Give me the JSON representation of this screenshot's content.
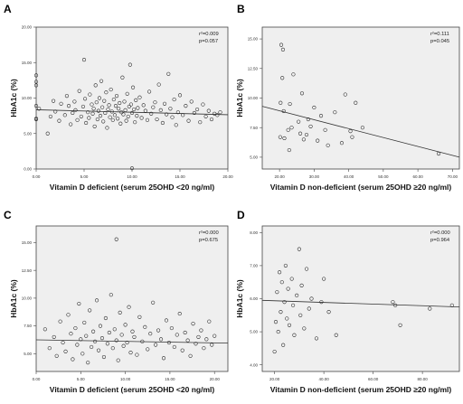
{
  "panels_title": "",
  "chart_data": [
    {
      "panel_label": "A",
      "type": "scatter",
      "xlabel": "Vitamin D deficient (serum 25OHD <20 ng/ml)",
      "ylabel": "HbA1c (%)",
      "xlim": [
        0,
        20
      ],
      "ylim": [
        0,
        20
      ],
      "xticks": [
        0,
        5,
        10,
        15,
        20
      ],
      "xtick_labels": [
        "0.00",
        "5.00",
        "10.00",
        "15.00",
        "20.00"
      ],
      "yticks": [
        0,
        5,
        10,
        15,
        20
      ],
      "ytick_labels": [
        "0.00",
        "5.00",
        "10.00",
        "15.00",
        "20.00"
      ],
      "annotation_lines": [
        "r²=0.009",
        "p=0.057"
      ],
      "fit_line": {
        "x": [
          0,
          20
        ],
        "y": [
          8.35,
          7.65
        ]
      },
      "points": [
        [
          0.0,
          13.2
        ],
        [
          0.0,
          12.3
        ],
        [
          0.0,
          11.8
        ],
        [
          0.0,
          7.1
        ],
        [
          0.0,
          7.0
        ],
        [
          0.0,
          8.9
        ],
        [
          0.3,
          8.5
        ],
        [
          1.2,
          5.0
        ],
        [
          1.5,
          7.4
        ],
        [
          1.8,
          9.6
        ],
        [
          2.0,
          8.1
        ],
        [
          2.4,
          6.8
        ],
        [
          2.6,
          9.2
        ],
        [
          3.0,
          7.6
        ],
        [
          3.2,
          10.3
        ],
        [
          3.4,
          8.9
        ],
        [
          3.6,
          6.3
        ],
        [
          3.8,
          7.9
        ],
        [
          4.0,
          9.5
        ],
        [
          4.1,
          8.3
        ],
        [
          4.3,
          6.9
        ],
        [
          4.5,
          11.0
        ],
        [
          4.7,
          7.4
        ],
        [
          4.9,
          8.8
        ],
        [
          5.0,
          15.4
        ],
        [
          5.1,
          9.9
        ],
        [
          5.2,
          6.5
        ],
        [
          5.4,
          8.0
        ],
        [
          5.5,
          7.2
        ],
        [
          5.6,
          10.5
        ],
        [
          5.8,
          9.1
        ],
        [
          5.9,
          7.8
        ],
        [
          6.0,
          8.5
        ],
        [
          6.1,
          6.0
        ],
        [
          6.2,
          11.8
        ],
        [
          6.3,
          9.4
        ],
        [
          6.4,
          7.0
        ],
        [
          6.5,
          8.2
        ],
        [
          6.6,
          10.0
        ],
        [
          6.7,
          7.5
        ],
        [
          6.8,
          12.4
        ],
        [
          6.9,
          8.7
        ],
        [
          7.0,
          6.7
        ],
        [
          7.1,
          9.6
        ],
        [
          7.2,
          7.9
        ],
        [
          7.3,
          10.8
        ],
        [
          7.4,
          5.8
        ],
        [
          7.5,
          8.4
        ],
        [
          7.6,
          9.0
        ],
        [
          7.7,
          7.3
        ],
        [
          7.8,
          11.2
        ],
        [
          7.9,
          8.1
        ],
        [
          8.0,
          6.9
        ],
        [
          8.1,
          9.8
        ],
        [
          8.2,
          7.6
        ],
        [
          8.3,
          8.9
        ],
        [
          8.4,
          10.3
        ],
        [
          8.5,
          7.1
        ],
        [
          8.6,
          8.5
        ],
        [
          8.7,
          9.3
        ],
        [
          8.8,
          6.4
        ],
        [
          8.9,
          8.0
        ],
        [
          9.0,
          12.9
        ],
        [
          9.1,
          7.7
        ],
        [
          9.2,
          9.5
        ],
        [
          9.3,
          8.3
        ],
        [
          9.4,
          6.8
        ],
        [
          9.5,
          10.6
        ],
        [
          9.6,
          7.4
        ],
        [
          9.7,
          8.8
        ],
        [
          9.8,
          14.7
        ],
        [
          9.9,
          9.1
        ],
        [
          10.0,
          0.1
        ],
        [
          10.0,
          7.9
        ],
        [
          10.1,
          11.5
        ],
        [
          10.2,
          8.4
        ],
        [
          10.3,
          6.6
        ],
        [
          10.4,
          9.7
        ],
        [
          10.5,
          7.5
        ],
        [
          10.6,
          8.6
        ],
        [
          10.8,
          10.1
        ],
        [
          11.0,
          7.2
        ],
        [
          11.2,
          9.0
        ],
        [
          11.4,
          8.2
        ],
        [
          11.6,
          6.9
        ],
        [
          11.8,
          10.9
        ],
        [
          12.0,
          7.8
        ],
        [
          12.2,
          8.7
        ],
        [
          12.4,
          9.4
        ],
        [
          12.6,
          7.0
        ],
        [
          12.8,
          11.9
        ],
        [
          13.0,
          8.3
        ],
        [
          13.2,
          6.5
        ],
        [
          13.4,
          9.2
        ],
        [
          13.6,
          7.7
        ],
        [
          13.8,
          13.4
        ],
        [
          14.0,
          8.5
        ],
        [
          14.2,
          7.3
        ],
        [
          14.4,
          9.8
        ],
        [
          14.6,
          6.2
        ],
        [
          14.8,
          8.0
        ],
        [
          15.0,
          10.4
        ],
        [
          15.3,
          7.6
        ],
        [
          15.6,
          8.9
        ],
        [
          15.9,
          6.8
        ],
        [
          16.2,
          9.5
        ],
        [
          16.5,
          7.9
        ],
        [
          16.8,
          8.4
        ],
        [
          17.1,
          6.6
        ],
        [
          17.4,
          9.1
        ],
        [
          17.7,
          7.4
        ],
        [
          18.0,
          8.2
        ],
        [
          18.3,
          7.0
        ],
        [
          18.6,
          7.8
        ],
        [
          18.9,
          7.6
        ],
        [
          19.2,
          8.0
        ]
      ]
    },
    {
      "panel_label": "B",
      "type": "scatter",
      "xlabel": "Vitamin D non-deficient (serum 25OHD ≥20 ng/ml)",
      "ylabel": "HbA1c (%)",
      "xlim": [
        15,
        72
      ],
      "ylim": [
        4,
        16
      ],
      "xticks": [
        20,
        30,
        40,
        50,
        60,
        70
      ],
      "xtick_labels": [
        "20.00",
        "30.00",
        "40.00",
        "50.00",
        "60.00",
        "70.00"
      ],
      "yticks": [
        5,
        7.5,
        10,
        12.5,
        15
      ],
      "ytick_labels": [
        "5.00",
        "7.50",
        "10.00",
        "12.50",
        "15.00"
      ],
      "annotation_lines": [
        "r²=0.111",
        "p=0.045"
      ],
      "fit_line": {
        "x": [
          15,
          72
        ],
        "y": [
          9.3,
          5.0
        ]
      },
      "points": [
        [
          20.5,
          14.5
        ],
        [
          21.0,
          14.1
        ],
        [
          20.8,
          11.7
        ],
        [
          20.3,
          9.6
        ],
        [
          21.2,
          8.9
        ],
        [
          20.2,
          6.7
        ],
        [
          21.4,
          6.6
        ],
        [
          22.5,
          7.3
        ],
        [
          23.0,
          9.5
        ],
        [
          23.5,
          7.5
        ],
        [
          22.8,
          5.6
        ],
        [
          24.0,
          12.0
        ],
        [
          25.5,
          8.0
        ],
        [
          26.0,
          7.0
        ],
        [
          26.5,
          10.4
        ],
        [
          27.0,
          6.5
        ],
        [
          27.8,
          6.9
        ],
        [
          28.3,
          8.2
        ],
        [
          29.0,
          7.6
        ],
        [
          30.0,
          9.2
        ],
        [
          31.0,
          6.4
        ],
        [
          32.0,
          8.5
        ],
        [
          33.2,
          7.3
        ],
        [
          34.0,
          6.0
        ],
        [
          36.0,
          8.8
        ],
        [
          38.0,
          6.2
        ],
        [
          39.0,
          10.3
        ],
        [
          40.5,
          7.2
        ],
        [
          41.0,
          6.7
        ],
        [
          42.0,
          9.6
        ],
        [
          44.0,
          7.5
        ],
        [
          66.0,
          5.3
        ]
      ]
    },
    {
      "panel_label": "C",
      "type": "scatter",
      "xlabel": "Vitamin D deficient (serum 25OHD <20 ng/ml)",
      "ylabel": "HbA1c (%)",
      "xlim": [
        0,
        21.5
      ],
      "ylim": [
        3.4,
        16.5
      ],
      "xticks": [
        0,
        5,
        10,
        15,
        20
      ],
      "xtick_labels": [
        "0.00",
        "5.00",
        "10.00",
        "15.00",
        "20.00"
      ],
      "yticks": [
        5,
        7.5,
        10,
        12.5,
        15
      ],
      "ytick_labels": [
        "5.00",
        "7.50",
        "10.00",
        "12.50",
        "15.00"
      ],
      "annotation_lines": [
        "r²=0.000",
        "p=0.675"
      ],
      "fit_line": {
        "x": [
          0,
          21.5
        ],
        "y": [
          6.25,
          5.95
        ]
      },
      "points": [
        [
          9.0,
          15.3
        ],
        [
          1.0,
          7.2
        ],
        [
          1.5,
          5.5
        ],
        [
          2.0,
          6.5
        ],
        [
          2.3,
          4.8
        ],
        [
          2.7,
          7.9
        ],
        [
          3.0,
          6.0
        ],
        [
          3.3,
          5.2
        ],
        [
          3.6,
          8.5
        ],
        [
          3.9,
          6.8
        ],
        [
          4.1,
          4.5
        ],
        [
          4.4,
          7.3
        ],
        [
          4.6,
          5.8
        ],
        [
          4.8,
          9.5
        ],
        [
          5.0,
          6.3
        ],
        [
          5.2,
          5.0
        ],
        [
          5.4,
          7.8
        ],
        [
          5.6,
          6.6
        ],
        [
          5.8,
          4.2
        ],
        [
          6.0,
          8.9
        ],
        [
          6.2,
          5.6
        ],
        [
          6.4,
          7.0
        ],
        [
          6.6,
          6.1
        ],
        [
          6.8,
          9.8
        ],
        [
          7.0,
          5.3
        ],
        [
          7.2,
          7.5
        ],
        [
          7.4,
          6.4
        ],
        [
          7.6,
          4.7
        ],
        [
          7.8,
          8.2
        ],
        [
          8.0,
          5.9
        ],
        [
          8.2,
          6.9
        ],
        [
          8.4,
          10.3
        ],
        [
          8.6,
          5.5
        ],
        [
          8.8,
          7.2
        ],
        [
          9.0,
          6.2
        ],
        [
          9.2,
          4.4
        ],
        [
          9.4,
          8.7
        ],
        [
          9.6,
          6.7
        ],
        [
          9.8,
          5.7
        ],
        [
          10.0,
          7.6
        ],
        [
          10.2,
          6.0
        ],
        [
          10.4,
          9.2
        ],
        [
          10.6,
          5.1
        ],
        [
          10.8,
          7.0
        ],
        [
          11.0,
          6.5
        ],
        [
          11.3,
          4.9
        ],
        [
          11.6,
          8.3
        ],
        [
          11.9,
          6.1
        ],
        [
          12.2,
          7.4
        ],
        [
          12.5,
          5.4
        ],
        [
          12.8,
          6.8
        ],
        [
          13.1,
          9.6
        ],
        [
          13.4,
          5.8
        ],
        [
          13.7,
          7.1
        ],
        [
          14.0,
          6.3
        ],
        [
          14.3,
          4.6
        ],
        [
          14.6,
          8.0
        ],
        [
          14.9,
          6.0
        ],
        [
          15.2,
          7.3
        ],
        [
          15.5,
          5.6
        ],
        [
          15.8,
          6.7
        ],
        [
          16.1,
          8.6
        ],
        [
          16.4,
          5.3
        ],
        [
          16.7,
          6.9
        ],
        [
          17.0,
          6.2
        ],
        [
          17.3,
          4.8
        ],
        [
          17.6,
          7.7
        ],
        [
          17.9,
          5.9
        ],
        [
          18.2,
          6.5
        ],
        [
          18.5,
          7.1
        ],
        [
          18.8,
          5.5
        ],
        [
          19.1,
          6.3
        ],
        [
          19.4,
          7.9
        ],
        [
          19.7,
          5.8
        ],
        [
          20.0,
          6.6
        ]
      ]
    },
    {
      "panel_label": "D",
      "type": "scatter",
      "xlabel": "Vitamin D non-deficient (serum 25OHD ≥20 ng/ml)",
      "ylabel": "HbA1c (%)",
      "xlim": [
        15,
        95
      ],
      "ylim": [
        3.8,
        8.2
      ],
      "xticks": [
        20,
        40,
        60,
        80
      ],
      "xtick_labels": [
        "20.00",
        "40.00",
        "60.00",
        "80.00"
      ],
      "yticks": [
        4,
        5,
        6,
        7,
        8
      ],
      "ytick_labels": [
        "4.00",
        "5.00",
        "6.00",
        "7.00",
        "8.00"
      ],
      "annotation_lines": [
        "r²=0.000",
        "p=0.964"
      ],
      "fit_line": {
        "x": [
          15,
          95
        ],
        "y": [
          5.95,
          5.75
        ]
      },
      "points": [
        [
          20.0,
          4.4
        ],
        [
          20.5,
          5.3
        ],
        [
          21.0,
          6.2
        ],
        [
          21.5,
          5.0
        ],
        [
          22.0,
          6.8
        ],
        [
          22.5,
          5.6
        ],
        [
          23.0,
          6.5
        ],
        [
          23.5,
          4.6
        ],
        [
          24.0,
          5.9
        ],
        [
          24.5,
          7.0
        ],
        [
          25.0,
          5.4
        ],
        [
          25.5,
          6.3
        ],
        [
          26.0,
          5.2
        ],
        [
          27.0,
          6.6
        ],
        [
          27.5,
          5.8
        ],
        [
          28.0,
          4.9
        ],
        [
          29.0,
          6.1
        ],
        [
          30.0,
          7.5
        ],
        [
          30.5,
          5.5
        ],
        [
          31.0,
          6.4
        ],
        [
          32.0,
          5.1
        ],
        [
          33.0,
          6.9
        ],
        [
          34.0,
          5.7
        ],
        [
          35.0,
          6.0
        ],
        [
          37.0,
          4.8
        ],
        [
          39.0,
          5.9
        ],
        [
          40.0,
          6.6
        ],
        [
          42.0,
          5.6
        ],
        [
          45.0,
          4.9
        ],
        [
          68.0,
          5.9
        ],
        [
          69.0,
          5.8
        ],
        [
          71.0,
          5.2
        ],
        [
          83.0,
          5.7
        ],
        [
          92.0,
          5.8
        ]
      ]
    }
  ]
}
